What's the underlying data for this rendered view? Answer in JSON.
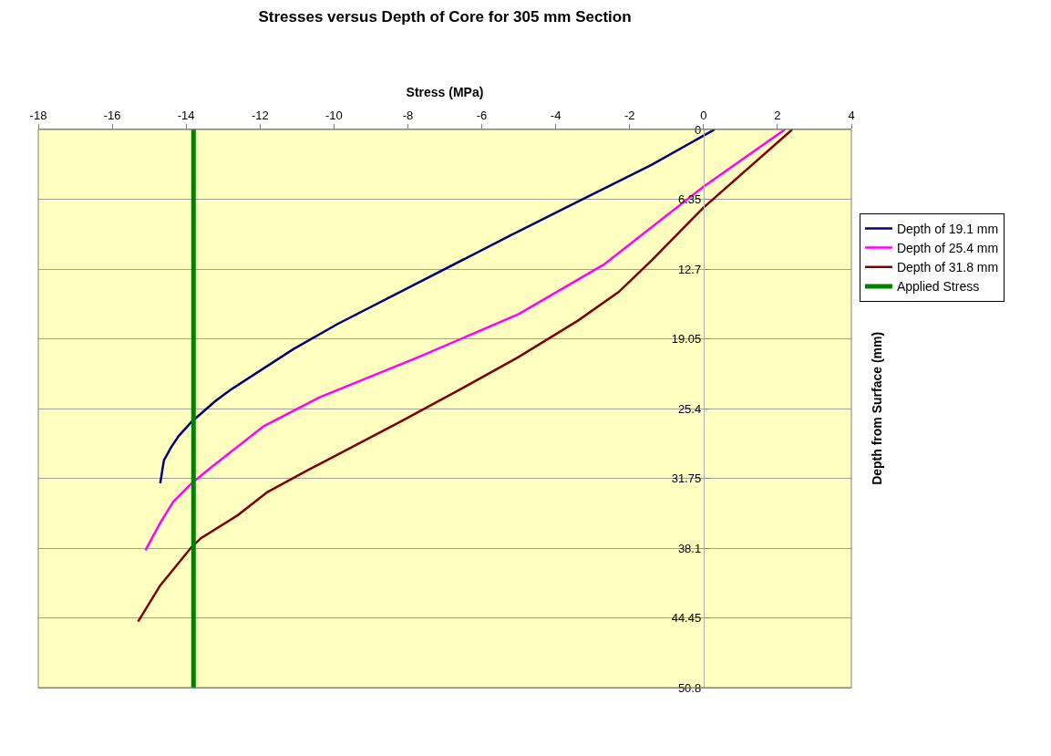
{
  "chart_data": {
    "type": "line",
    "title": "Stresses versus Depth of Core for 305 mm Section",
    "xlabel": "Stress (MPa)",
    "ylabel": "Depth from Surface (mm)",
    "xlim": [
      -18,
      4
    ],
    "xticks": [
      -18,
      -16,
      -14,
      -12,
      -10,
      -8,
      -6,
      -4,
      -2,
      0,
      2,
      4
    ],
    "ylim": [
      50.8,
      0
    ],
    "yticks": [
      0,
      6.35,
      12.7,
      19.05,
      25.4,
      31.75,
      38.1,
      44.45,
      50.8
    ],
    "grid": "y",
    "legend": "right",
    "marker": "none",
    "line_style": "solid",
    "series": [
      {
        "name": "Depth of 19.1 mm",
        "color": "#000080",
        "x": [
          0.3,
          -1.4,
          -3.6,
          -5.2,
          -8.1,
          -9.9,
          -11.1,
          -12.8,
          -13.2,
          -13.85,
          -14.2,
          -14.4,
          -14.6,
          -14.7
        ],
        "values": [
          0,
          3.2,
          6.9,
          9.6,
          14.6,
          17.7,
          20,
          23.7,
          24.7,
          26.6,
          27.9,
          28.9,
          30.1,
          32.2
        ]
      },
      {
        "name": "Depth of 25.4 mm",
        "color": "#ff00ff",
        "x": [
          2.2,
          0,
          -2.7,
          -5,
          -7.7,
          -10.4,
          -11.9,
          -13.3,
          -13.85,
          -14.35,
          -14.7,
          -15.1
        ],
        "values": [
          0,
          5.2,
          12.3,
          16.8,
          20.7,
          24.4,
          27,
          30.7,
          32.2,
          33.9,
          35.8,
          38.3
        ]
      },
      {
        "name": "Depth of 31.8 mm",
        "color": "#800000",
        "x": [
          2.4,
          0,
          -1.4,
          -2.3,
          -3.4,
          -5,
          -6.5,
          -8.2,
          -10.7,
          -11.8,
          -12.6,
          -13.6,
          -13.85,
          -14.7,
          -15.3
        ],
        "values": [
          0,
          7.1,
          11.9,
          14.8,
          17.4,
          20.7,
          23.5,
          26.6,
          31,
          33,
          35.1,
          37.2,
          38,
          41.5,
          44.8
        ]
      },
      {
        "name": "Applied Stress",
        "color": "#008000",
        "x": [
          -13.8,
          -13.8
        ],
        "values": [
          0,
          50.8
        ]
      }
    ]
  }
}
